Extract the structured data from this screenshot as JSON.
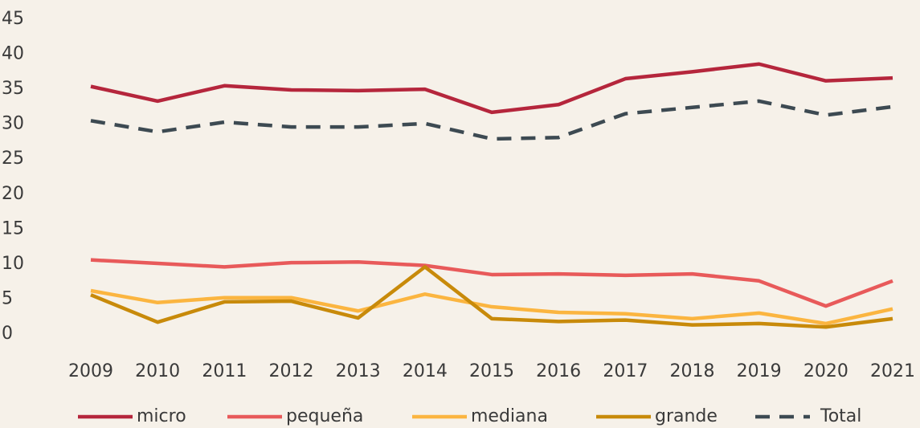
{
  "chart_data": {
    "type": "line",
    "x": [
      2009,
      2010,
      2011,
      2012,
      2013,
      2014,
      2015,
      2016,
      2017,
      2018,
      2019,
      2020,
      2021
    ],
    "xlim": [
      2009,
      2021
    ],
    "xticks": [
      2009,
      2010,
      2011,
      2012,
      2013,
      2014,
      2015,
      2016,
      2017,
      2018,
      2019,
      2020,
      2021
    ],
    "ylim": [
      0,
      45
    ],
    "yticks": [
      0,
      5,
      10,
      15,
      20,
      25,
      30,
      35,
      40,
      45
    ],
    "grid": false,
    "legend": "bottom",
    "series": [
      {
        "name": "micro",
        "color": "#b5263c",
        "values": [
          35.4,
          33.3,
          35.5,
          34.9,
          34.8,
          35.0,
          31.7,
          32.8,
          36.5,
          37.5,
          38.6,
          36.2,
          36.6
        ]
      },
      {
        "name": "pequeña",
        "color": "#e85a5a",
        "values": [
          10.6,
          10.1,
          9.6,
          10.2,
          10.3,
          9.8,
          8.5,
          8.6,
          8.4,
          8.6,
          7.6,
          4.0,
          7.6
        ]
      },
      {
        "name": "mediana",
        "color": "#fbb540",
        "values": [
          6.2,
          4.5,
          5.2,
          5.2,
          3.3,
          5.7,
          3.9,
          3.1,
          2.9,
          2.2,
          3.0,
          1.5,
          3.6
        ]
      },
      {
        "name": "grande",
        "color": "#c88a0a",
        "values": [
          5.6,
          1.7,
          4.6,
          4.7,
          2.3,
          9.6,
          2.2,
          1.8,
          2.0,
          1.3,
          1.5,
          1.0,
          2.2
        ]
      },
      {
        "name": "Total",
        "color": "#3d4a52",
        "dash": true,
        "values": [
          30.5,
          28.9,
          30.3,
          29.6,
          29.6,
          30.1,
          27.9,
          28.1,
          31.5,
          32.4,
          33.3,
          31.3,
          32.5
        ]
      }
    ]
  }
}
